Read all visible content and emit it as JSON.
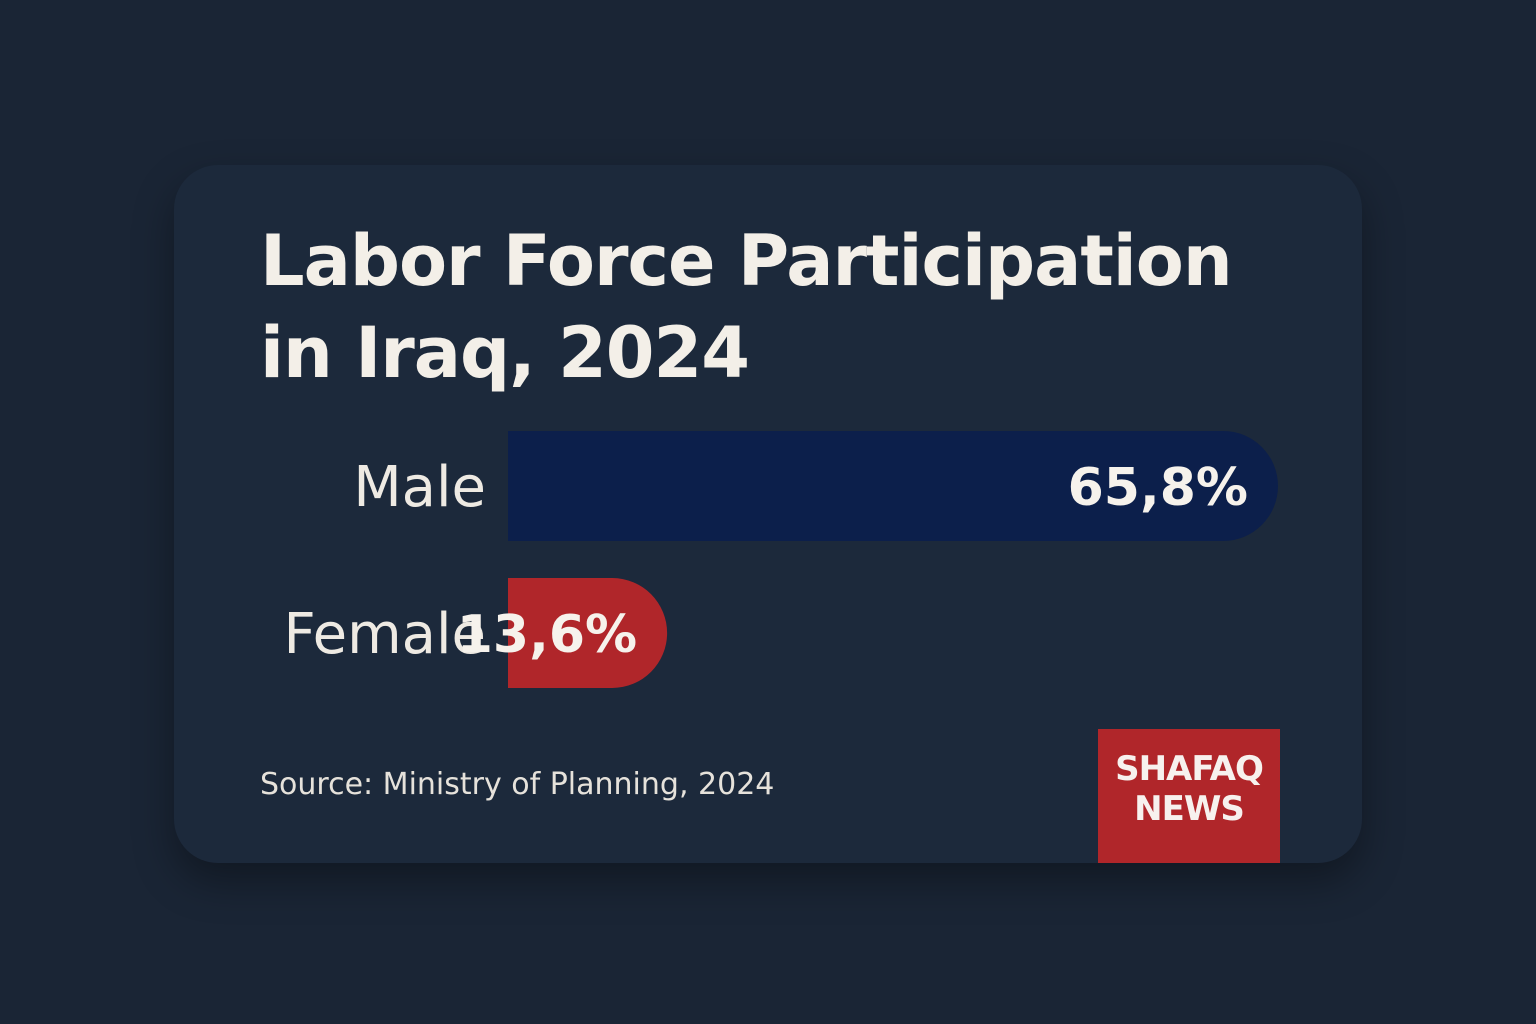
{
  "chart_data": {
    "type": "bar",
    "orientation": "horizontal",
    "title": "Labor Force Participation in Iraq, 2024",
    "title_lines": [
      "Labor Force Participation",
      "in Iraq, 2024"
    ],
    "categories": [
      "Male",
      "Female"
    ],
    "values": [
      65.8,
      13.6
    ],
    "value_labels": [
      "65,8%",
      "13,6%"
    ],
    "colors": [
      "#0c1f4b",
      "#b0262a"
    ],
    "xlim": [
      0,
      65.8
    ],
    "grid": false,
    "legend": "none"
  },
  "source": "Source: Ministry of Planning, 2024",
  "logo": {
    "line1": "SHAFAQ",
    "line2": "NEWS",
    "color": "#b0262a"
  },
  "colors": {
    "background": "#1a2535",
    "card": "#1c293b",
    "text": "#f3efe8"
  }
}
